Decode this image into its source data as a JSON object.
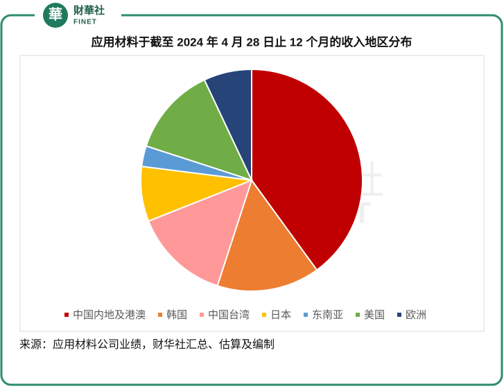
{
  "header": {
    "brand": "財華社",
    "brand_en": "FINET"
  },
  "chart_data": {
    "type": "pie",
    "title": "应用材料于截至 2024 年 4 月 28 日止 12 个月的收入地区分布",
    "categories": [
      "中国内地及港澳",
      "韩国",
      "中国台湾",
      "日本",
      "东南亚",
      "美国",
      "欧洲"
    ],
    "values": [
      40,
      15,
      14,
      8,
      3,
      13,
      7
    ],
    "colors": [
      "#c00000",
      "#ed7d31",
      "#ff9999",
      "#ffc000",
      "#5b9bd5",
      "#70ad47",
      "#264478"
    ],
    "legend": "bottom"
  },
  "source": "来源：应用材料公司业绩，财华社汇总、估算及编制"
}
